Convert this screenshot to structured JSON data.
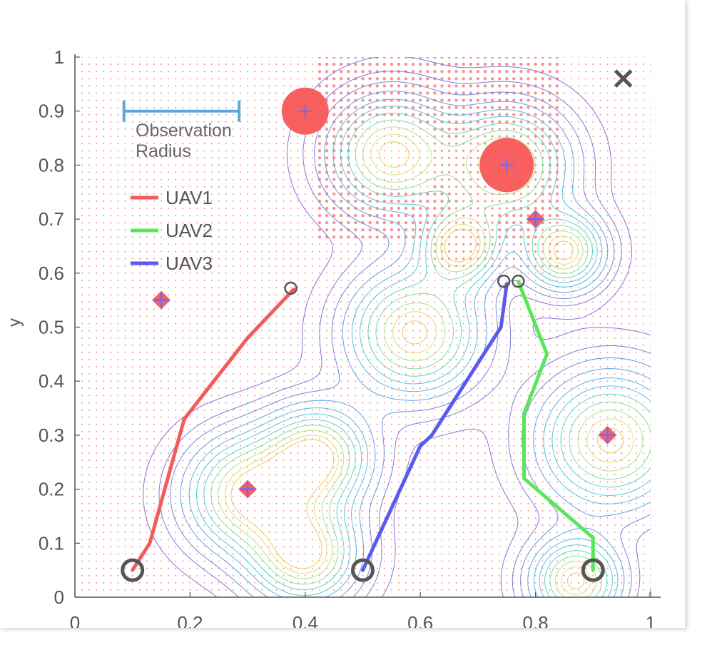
{
  "chart_data": {
    "type": "line",
    "title": "",
    "xlabel": "",
    "ylabel": "y",
    "xlim": [
      0,
      1
    ],
    "ylim": [
      0,
      1
    ],
    "xticks": [
      "0",
      "0.2",
      "0.4",
      "0.6",
      "0.8",
      "1"
    ],
    "yticks": [
      "0",
      "0.1",
      "0.2",
      "0.3",
      "0.4",
      "0.5",
      "0.6",
      "0.7",
      "0.8",
      "0.9",
      "1"
    ],
    "legend_position": "top-left",
    "observation_radius_label": [
      "Observation",
      "Radius"
    ],
    "observation_radius_bar": {
      "x_start": 0.1,
      "x_end": 0.3,
      "y": 0.9,
      "color": "#5aa9e0"
    },
    "series": [
      {
        "name": "UAV1",
        "color": "#f45a5a",
        "x": [
          0.1,
          0.13,
          0.19,
          0.3,
          0.38
        ],
        "y": [
          0.05,
          0.1,
          0.33,
          0.48,
          0.57
        ]
      },
      {
        "name": "UAV2",
        "color": "#5ae65a",
        "x": [
          0.9,
          0.9,
          0.78,
          0.78,
          0.82,
          0.77
        ],
        "y": [
          0.05,
          0.11,
          0.22,
          0.34,
          0.45,
          0.585
        ]
      },
      {
        "name": "UAV3",
        "color": "#5a5af0",
        "x": [
          0.5,
          0.6,
          0.62,
          0.74,
          0.75
        ],
        "y": [
          0.05,
          0.28,
          0.3,
          0.5,
          0.58
        ]
      }
    ],
    "start_points": [
      {
        "x": 0.1,
        "y": 0.05
      },
      {
        "x": 0.5,
        "y": 0.05
      },
      {
        "x": 0.9,
        "y": 0.05
      }
    ],
    "end_points": [
      {
        "x": 0.375,
        "y": 0.572
      },
      {
        "x": 0.745,
        "y": 0.585
      },
      {
        "x": 0.77,
        "y": 0.585
      }
    ],
    "targets": [
      {
        "x": 0.15,
        "y": 0.55
      },
      {
        "x": 0.3,
        "y": 0.2
      },
      {
        "x": 0.8,
        "y": 0.7
      },
      {
        "x": 0.925,
        "y": 0.3
      }
    ],
    "large_targets": [
      {
        "x": 0.4,
        "y": 0.9
      },
      {
        "x": 0.75,
        "y": 0.8
      }
    ],
    "goal_marker": {
      "x": 0.955,
      "y": 0.955
    },
    "hotspots": [
      {
        "x": 0.55,
        "y": 0.82,
        "s": 0.07
      },
      {
        "x": 0.75,
        "y": 0.8,
        "s": 0.07
      },
      {
        "x": 0.67,
        "y": 0.65,
        "s": 0.045
      },
      {
        "x": 0.85,
        "y": 0.64,
        "s": 0.045
      },
      {
        "x": 0.59,
        "y": 0.49,
        "s": 0.075
      },
      {
        "x": 0.3,
        "y": 0.19,
        "s": 0.07
      },
      {
        "x": 0.42,
        "y": 0.26,
        "s": 0.06
      },
      {
        "x": 0.4,
        "y": 0.08,
        "s": 0.06
      },
      {
        "x": 0.93,
        "y": 0.29,
        "s": 0.08
      },
      {
        "x": 0.87,
        "y": 0.03,
        "s": 0.05
      }
    ]
  }
}
